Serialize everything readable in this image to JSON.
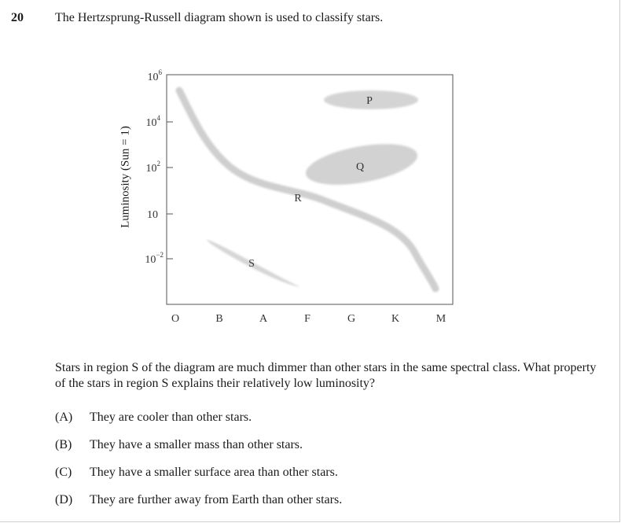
{
  "question_number": "20",
  "stem": "The Hertzsprung-Russell diagram shown is used to classify stars.",
  "diagram": {
    "y_axis_label": "Luminosity (Sun = 1)",
    "y_ticks": [
      {
        "base": "10",
        "exp": "6"
      },
      {
        "base": "10",
        "exp": "4"
      },
      {
        "base": "10",
        "exp": "2"
      },
      {
        "base": "10",
        "exp": ""
      },
      {
        "base": "10",
        "exp": "−2"
      }
    ],
    "x_ticks": [
      "O",
      "B",
      "A",
      "F",
      "G",
      "K",
      "M"
    ],
    "region_labels": {
      "p": "P",
      "q": "Q",
      "r": "R",
      "s": "S"
    },
    "region_color": "#d6d6d6"
  },
  "question_text": "Stars in region S of the diagram are much dimmer than other stars in the same spectral class. What property of the stars in region S explains their relatively low luminosity?",
  "options": [
    {
      "letter": "(A)",
      "text": "They are cooler than other stars."
    },
    {
      "letter": "(B)",
      "text": "They have a smaller mass than other stars."
    },
    {
      "letter": "(C)",
      "text": "They have a smaller surface area than other stars."
    },
    {
      "letter": "(D)",
      "text": "They are further away from Earth than other stars."
    }
  ]
}
